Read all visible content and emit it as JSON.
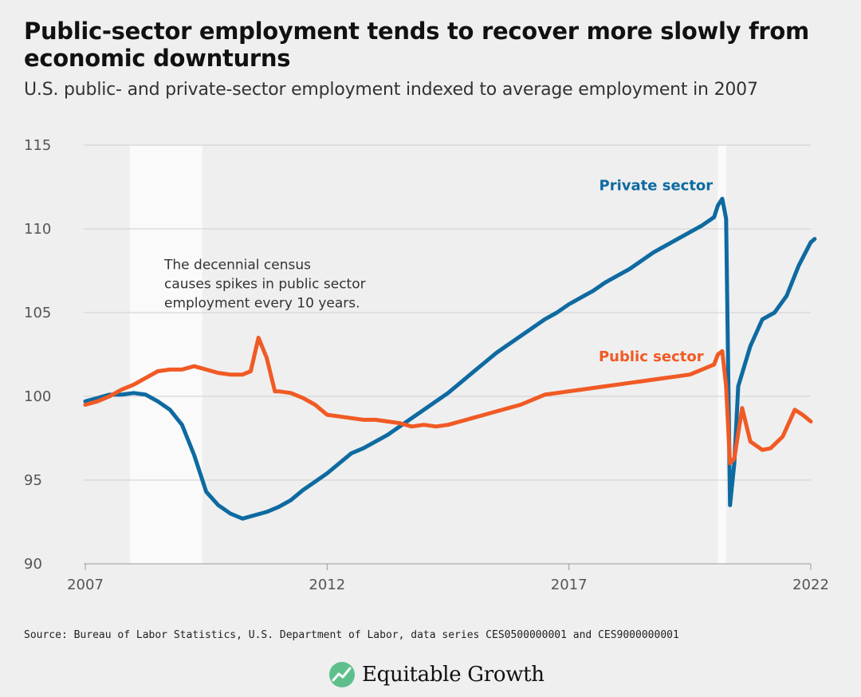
{
  "header": {
    "title": "Public-sector employment tends to recover more slowly from economic downturns",
    "subtitle": "U.S. public- and private-sector employment indexed to average employment in 2007"
  },
  "footer": {
    "source": "Source: Bureau of Labor Statistics, U.S. Department of Labor, data series CES0500000001 and CES9000000001",
    "brand": "Equitable Growth"
  },
  "colors": {
    "private": "#0e6aa1",
    "public": "#f15a24",
    "recession": "#fafafa",
    "grid": "#cfcfcf"
  },
  "chart_data": {
    "type": "line",
    "xlim": [
      2007,
      2022
    ],
    "ylim": [
      90,
      115
    ],
    "x_ticks": [
      2007,
      2012,
      2017,
      2022
    ],
    "y_ticks": [
      90,
      95,
      100,
      105,
      110,
      115
    ],
    "grid": "horizontal",
    "recessions": [
      [
        2007.92,
        2009.42
      ],
      [
        2020.08,
        2020.25
      ]
    ],
    "annotation": {
      "lines": [
        "The decennial census",
        "causes spikes in public sector",
        "employment every 10 years."
      ],
      "x": 2008.5,
      "y": 107.6
    },
    "series": [
      {
        "name": "Private sector",
        "label_at": {
          "x": 2018.8,
          "y": 112.3
        },
        "points": [
          [
            2007.0,
            99.7
          ],
          [
            2007.25,
            99.9
          ],
          [
            2007.5,
            100.1
          ],
          [
            2007.75,
            100.1
          ],
          [
            2008.0,
            100.2
          ],
          [
            2008.25,
            100.1
          ],
          [
            2008.5,
            99.7
          ],
          [
            2008.75,
            99.2
          ],
          [
            2009.0,
            98.3
          ],
          [
            2009.25,
            96.5
          ],
          [
            2009.5,
            94.3
          ],
          [
            2009.75,
            93.5
          ],
          [
            2010.0,
            93.0
          ],
          [
            2010.25,
            92.7
          ],
          [
            2010.5,
            92.9
          ],
          [
            2010.75,
            93.1
          ],
          [
            2011.0,
            93.4
          ],
          [
            2011.25,
            93.8
          ],
          [
            2011.5,
            94.4
          ],
          [
            2011.75,
            94.9
          ],
          [
            2012.0,
            95.4
          ],
          [
            2012.25,
            96.0
          ],
          [
            2012.5,
            96.6
          ],
          [
            2012.75,
            96.9
          ],
          [
            2013.0,
            97.3
          ],
          [
            2013.25,
            97.7
          ],
          [
            2013.5,
            98.2
          ],
          [
            2013.75,
            98.7
          ],
          [
            2014.0,
            99.2
          ],
          [
            2014.25,
            99.7
          ],
          [
            2014.5,
            100.2
          ],
          [
            2014.75,
            100.8
          ],
          [
            2015.0,
            101.4
          ],
          [
            2015.25,
            102.0
          ],
          [
            2015.5,
            102.6
          ],
          [
            2015.75,
            103.1
          ],
          [
            2016.0,
            103.6
          ],
          [
            2016.25,
            104.1
          ],
          [
            2016.5,
            104.6
          ],
          [
            2016.75,
            105.0
          ],
          [
            2017.0,
            105.5
          ],
          [
            2017.25,
            105.9
          ],
          [
            2017.5,
            106.3
          ],
          [
            2017.75,
            106.8
          ],
          [
            2018.0,
            107.2
          ],
          [
            2018.25,
            107.6
          ],
          [
            2018.5,
            108.1
          ],
          [
            2018.75,
            108.6
          ],
          [
            2019.0,
            109.0
          ],
          [
            2019.25,
            109.4
          ],
          [
            2019.5,
            109.8
          ],
          [
            2019.75,
            110.2
          ],
          [
            2020.0,
            110.7
          ],
          [
            2020.08,
            111.4
          ],
          [
            2020.17,
            111.8
          ],
          [
            2020.25,
            110.6
          ],
          [
            2020.33,
            93.5
          ],
          [
            2020.42,
            96.0
          ],
          [
            2020.5,
            100.6
          ],
          [
            2020.75,
            103.0
          ],
          [
            2021.0,
            104.6
          ],
          [
            2021.25,
            105.0
          ],
          [
            2021.5,
            106.0
          ],
          [
            2021.75,
            107.8
          ],
          [
            2022.0,
            109.2
          ],
          [
            2022.08,
            109.4
          ]
        ]
      },
      {
        "name": "Public sector",
        "label_at": {
          "x": 2018.7,
          "y": 102.1
        },
        "points": [
          [
            2007.0,
            99.5
          ],
          [
            2007.25,
            99.7
          ],
          [
            2007.5,
            100.0
          ],
          [
            2007.75,
            100.4
          ],
          [
            2008.0,
            100.7
          ],
          [
            2008.25,
            101.1
          ],
          [
            2008.5,
            101.5
          ],
          [
            2008.75,
            101.6
          ],
          [
            2009.0,
            101.6
          ],
          [
            2009.25,
            101.8
          ],
          [
            2009.5,
            101.6
          ],
          [
            2009.75,
            101.4
          ],
          [
            2010.0,
            101.3
          ],
          [
            2010.25,
            101.3
          ],
          [
            2010.42,
            101.5
          ],
          [
            2010.58,
            103.5
          ],
          [
            2010.75,
            102.3
          ],
          [
            2010.92,
            100.3
          ],
          [
            2011.0,
            100.3
          ],
          [
            2011.25,
            100.2
          ],
          [
            2011.5,
            99.9
          ],
          [
            2011.75,
            99.5
          ],
          [
            2012.0,
            98.9
          ],
          [
            2012.25,
            98.8
          ],
          [
            2012.5,
            98.7
          ],
          [
            2012.75,
            98.6
          ],
          [
            2013.0,
            98.6
          ],
          [
            2013.25,
            98.5
          ],
          [
            2013.5,
            98.4
          ],
          [
            2013.75,
            98.2
          ],
          [
            2014.0,
            98.3
          ],
          [
            2014.25,
            98.2
          ],
          [
            2014.5,
            98.3
          ],
          [
            2014.75,
            98.5
          ],
          [
            2015.0,
            98.7
          ],
          [
            2015.25,
            98.9
          ],
          [
            2015.5,
            99.1
          ],
          [
            2015.75,
            99.3
          ],
          [
            2016.0,
            99.5
          ],
          [
            2016.25,
            99.8
          ],
          [
            2016.5,
            100.1
          ],
          [
            2016.75,
            100.2
          ],
          [
            2017.0,
            100.3
          ],
          [
            2017.25,
            100.4
          ],
          [
            2017.5,
            100.5
          ],
          [
            2017.75,
            100.6
          ],
          [
            2018.0,
            100.7
          ],
          [
            2018.25,
            100.8
          ],
          [
            2018.5,
            100.9
          ],
          [
            2018.75,
            101.0
          ],
          [
            2019.0,
            101.1
          ],
          [
            2019.25,
            101.2
          ],
          [
            2019.5,
            101.3
          ],
          [
            2019.75,
            101.6
          ],
          [
            2020.0,
            101.9
          ],
          [
            2020.08,
            102.5
          ],
          [
            2020.17,
            102.7
          ],
          [
            2020.25,
            100.6
          ],
          [
            2020.33,
            96.0
          ],
          [
            2020.42,
            96.3
          ],
          [
            2020.58,
            99.3
          ],
          [
            2020.75,
            97.3
          ],
          [
            2021.0,
            96.8
          ],
          [
            2021.17,
            96.9
          ],
          [
            2021.42,
            97.6
          ],
          [
            2021.67,
            99.2
          ],
          [
            2021.83,
            98.9
          ],
          [
            2022.0,
            98.5
          ]
        ]
      }
    ]
  }
}
